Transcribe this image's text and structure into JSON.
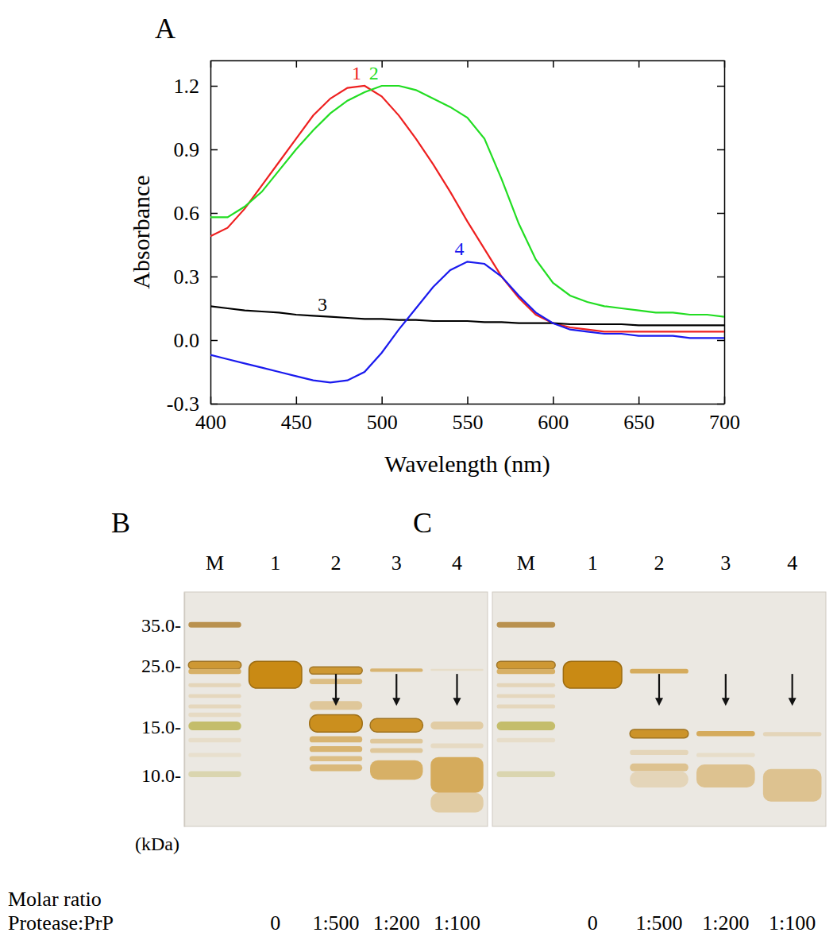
{
  "chart_data": [
    {
      "type": "line",
      "label": "A",
      "xlabel": "Wavelength (nm)",
      "ylabel": "Absorbance",
      "x": [
        400,
        410,
        420,
        430,
        440,
        450,
        460,
        470,
        480,
        490,
        500,
        510,
        520,
        530,
        540,
        550,
        560,
        570,
        580,
        590,
        600,
        610,
        620,
        630,
        640,
        650,
        660,
        670,
        680,
        690,
        700
      ],
      "xlim": [
        400,
        700
      ],
      "xticks": [
        400,
        450,
        500,
        550,
        600,
        650,
        700
      ],
      "ylim": [
        -0.3,
        1.32
      ],
      "yticks": [
        -0.3,
        {
          "value": 0,
          "label": "0.0"
        },
        0.3,
        0.6,
        0.9,
        1.2
      ],
      "series": [
        {
          "name": "1",
          "color": "#ee2020",
          "values": [
            0.49,
            0.53,
            0.62,
            0.73,
            0.84,
            0.95,
            1.06,
            1.14,
            1.19,
            1.2,
            1.15,
            1.06,
            0.95,
            0.83,
            0.7,
            0.56,
            0.43,
            0.3,
            0.2,
            0.12,
            0.08,
            0.06,
            0.05,
            0.04,
            0.04,
            0.04,
            0.04,
            0.04,
            0.04,
            0.04,
            0.04
          ]
        },
        {
          "name": "2",
          "color": "#22dd22",
          "values": [
            0.58,
            0.58,
            0.63,
            0.7,
            0.8,
            0.9,
            0.99,
            1.07,
            1.13,
            1.17,
            1.2,
            1.2,
            1.18,
            1.14,
            1.1,
            1.05,
            0.95,
            0.76,
            0.55,
            0.38,
            0.27,
            0.21,
            0.18,
            0.16,
            0.15,
            0.14,
            0.13,
            0.13,
            0.12,
            0.12,
            0.11
          ]
        },
        {
          "name": "3",
          "color": "#000000",
          "values": [
            0.16,
            0.15,
            0.14,
            0.135,
            0.13,
            0.12,
            0.115,
            0.11,
            0.105,
            0.1,
            0.1,
            0.095,
            0.095,
            0.09,
            0.09,
            0.09,
            0.085,
            0.085,
            0.08,
            0.08,
            0.08,
            0.075,
            0.075,
            0.075,
            0.075,
            0.07,
            0.07,
            0.07,
            0.07,
            0.07,
            0.07
          ]
        },
        {
          "name": "4",
          "color": "#1a1aee",
          "values": [
            -0.07,
            -0.09,
            -0.11,
            -0.13,
            -0.15,
            -0.17,
            -0.19,
            -0.2,
            -0.19,
            -0.15,
            -0.06,
            0.05,
            0.15,
            0.25,
            0.33,
            0.37,
            0.36,
            0.3,
            0.21,
            0.13,
            0.08,
            0.05,
            0.04,
            0.03,
            0.03,
            0.02,
            0.02,
            0.02,
            0.01,
            0.01,
            0.01
          ]
        }
      ]
    },
    {
      "type": "gel",
      "label": "B",
      "categories": [
        "M",
        "1",
        "2",
        "3",
        "4"
      ],
      "ratios": [
        null,
        "0",
        "1:500",
        "1:200",
        "1:100"
      ],
      "ratio_title": [
        "Molar ratio",
        "Protease:PrP"
      ],
      "ylabel": "(kDa)",
      "log": "y",
      "ylim": [
        6.5,
        46
      ],
      "yticks": [
        {
          "value": 35,
          "label": "35.0-"
        },
        {
          "value": 25,
          "label": "25.0-"
        },
        {
          "value": 15,
          "label": "15.0-"
        },
        {
          "value": 10,
          "label": "10.0-"
        }
      ],
      "color": "#c98a14",
      "bands": [
        {
          "lane": 0,
          "top": 35.8,
          "bottom": 34.2,
          "intensity": 0.75,
          "color": "#a8741c"
        },
        {
          "lane": 0,
          "top": 25.8,
          "bottom": 24.2,
          "intensity": 0.85
        },
        {
          "lane": 0,
          "top": 24.2,
          "bottom": 23.2,
          "intensity": 0.6
        },
        {
          "lane": 0,
          "top": 21.5,
          "bottom": 20.8,
          "intensity": 0.2
        },
        {
          "lane": 0,
          "top": 19.6,
          "bottom": 19.0,
          "intensity": 0.18
        },
        {
          "lane": 0,
          "top": 18.0,
          "bottom": 17.4,
          "intensity": 0.18
        },
        {
          "lane": 0,
          "top": 16.8,
          "bottom": 16.2,
          "intensity": 0.15
        },
        {
          "lane": 0,
          "top": 15.6,
          "bottom": 14.5,
          "intensity": 0.7,
          "color": "#b3aa38"
        },
        {
          "lane": 0,
          "top": 13.6,
          "bottom": 13.1,
          "intensity": 0.12
        },
        {
          "lane": 0,
          "top": 12.0,
          "bottom": 11.6,
          "intensity": 0.1
        },
        {
          "lane": 0,
          "top": 10.3,
          "bottom": 9.8,
          "intensity": 0.3,
          "color": "#b3aa38"
        },
        {
          "lane": 1,
          "top": 25.8,
          "bottom": 20.6,
          "intensity": 1.0
        },
        {
          "lane": 2,
          "top": 24.6,
          "bottom": 23.2,
          "intensity": 0.85
        },
        {
          "lane": 2,
          "top": 22.3,
          "bottom": 21.3,
          "intensity": 0.45
        },
        {
          "lane": 2,
          "top": 18.5,
          "bottom": 17.2,
          "intensity": 0.35
        },
        {
          "lane": 2,
          "top": 16.5,
          "bottom": 14.3,
          "intensity": 0.95
        },
        {
          "lane": 2,
          "top": 13.8,
          "bottom": 13.1,
          "intensity": 0.55
        },
        {
          "lane": 2,
          "top": 12.7,
          "bottom": 12.1,
          "intensity": 0.55
        },
        {
          "lane": 2,
          "top": 11.7,
          "bottom": 11.2,
          "intensity": 0.45
        },
        {
          "lane": 2,
          "top": 10.9,
          "bottom": 10.3,
          "intensity": 0.5
        },
        {
          "lane": 3,
          "top": 24.3,
          "bottom": 23.6,
          "intensity": 0.55
        },
        {
          "lane": 3,
          "top": 16.0,
          "bottom": 14.3,
          "intensity": 0.9
        },
        {
          "lane": 3,
          "top": 13.5,
          "bottom": 13.0,
          "intensity": 0.35
        },
        {
          "lane": 3,
          "top": 12.5,
          "bottom": 12.0,
          "intensity": 0.35
        },
        {
          "lane": 3,
          "top": 11.3,
          "bottom": 9.6,
          "intensity": 0.6
        },
        {
          "lane": 4,
          "top": 24.2,
          "bottom": 23.8,
          "intensity": 0.12
        },
        {
          "lane": 4,
          "top": 15.6,
          "bottom": 14.6,
          "intensity": 0.3
        },
        {
          "lane": 4,
          "top": 13.0,
          "bottom": 12.5,
          "intensity": 0.15
        },
        {
          "lane": 4,
          "top": 11.6,
          "bottom": 8.6,
          "intensity": 0.65
        },
        {
          "lane": 4,
          "top": 8.6,
          "bottom": 7.3,
          "intensity": 0.3
        }
      ],
      "arrows": [
        {
          "lane": 2,
          "kDa": 17.8
        },
        {
          "lane": 3,
          "kDa": 17.8
        },
        {
          "lane": 4,
          "kDa": 17.8
        }
      ]
    },
    {
      "type": "gel",
      "label": "C",
      "categories": [
        "M",
        "1",
        "2",
        "3",
        "4"
      ],
      "ratios": [
        null,
        "0",
        "1:500",
        "1:200",
        "1:100"
      ],
      "log": "y",
      "ylim": [
        6.5,
        46
      ],
      "tick_labels": false,
      "color": "#c98a14",
      "bands": [
        {
          "lane": 0,
          "top": 35.8,
          "bottom": 34.2,
          "intensity": 0.75,
          "color": "#a8741c"
        },
        {
          "lane": 0,
          "top": 25.8,
          "bottom": 24.2,
          "intensity": 0.85
        },
        {
          "lane": 0,
          "top": 24.2,
          "bottom": 23.2,
          "intensity": 0.6
        },
        {
          "lane": 0,
          "top": 21.5,
          "bottom": 20.8,
          "intensity": 0.2
        },
        {
          "lane": 0,
          "top": 19.6,
          "bottom": 19.0,
          "intensity": 0.18
        },
        {
          "lane": 0,
          "top": 18.0,
          "bottom": 17.4,
          "intensity": 0.18
        },
        {
          "lane": 0,
          "top": 15.6,
          "bottom": 14.5,
          "intensity": 0.7,
          "color": "#b3aa38"
        },
        {
          "lane": 0,
          "top": 13.6,
          "bottom": 13.1,
          "intensity": 0.12
        },
        {
          "lane": 0,
          "top": 10.3,
          "bottom": 9.8,
          "intensity": 0.3,
          "color": "#b3aa38"
        },
        {
          "lane": 1,
          "top": 25.8,
          "bottom": 20.6,
          "intensity": 1.0
        },
        {
          "lane": 2,
          "top": 24.2,
          "bottom": 23.3,
          "intensity": 0.65
        },
        {
          "lane": 2,
          "top": 14.6,
          "bottom": 13.6,
          "intensity": 0.9
        },
        {
          "lane": 2,
          "top": 12.3,
          "bottom": 11.8,
          "intensity": 0.2
        },
        {
          "lane": 2,
          "top": 11.0,
          "bottom": 10.3,
          "intensity": 0.4
        },
        {
          "lane": 2,
          "top": 10.3,
          "bottom": 9.0,
          "intensity": 0.2
        },
        {
          "lane": 3,
          "top": 14.4,
          "bottom": 13.8,
          "intensity": 0.65
        },
        {
          "lane": 3,
          "top": 12.0,
          "bottom": 11.6,
          "intensity": 0.12
        },
        {
          "lane": 3,
          "top": 10.9,
          "bottom": 9.0,
          "intensity": 0.4
        },
        {
          "lane": 4,
          "top": 14.3,
          "bottom": 13.8,
          "intensity": 0.2
        },
        {
          "lane": 4,
          "top": 10.5,
          "bottom": 8.0,
          "intensity": 0.4
        }
      ],
      "arrows": [
        {
          "lane": 2,
          "kDa": 17.8
        },
        {
          "lane": 3,
          "kDa": 17.8
        },
        {
          "lane": 4,
          "kDa": 17.8
        }
      ]
    }
  ]
}
